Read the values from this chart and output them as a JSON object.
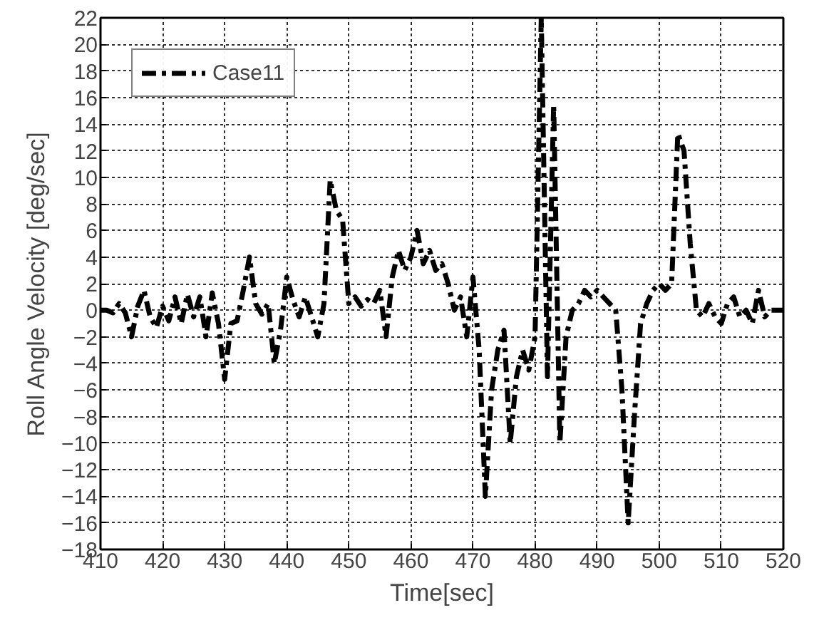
{
  "chart_data": {
    "type": "line",
    "xlabel": "Time[sec]",
    "ylabel": "Roll Angle Velocity [deg/sec]",
    "x": [
      410,
      411,
      412,
      413,
      414,
      415,
      416,
      417,
      418,
      419,
      420,
      421,
      422,
      423,
      424,
      425,
      426,
      427,
      428,
      429,
      430,
      431,
      432,
      433,
      434,
      435,
      436,
      437,
      438,
      439,
      440,
      441,
      442,
      443,
      444,
      445,
      446,
      447,
      448,
      449,
      450,
      451,
      452,
      453,
      454,
      455,
      456,
      457,
      458,
      459,
      460,
      461,
      462,
      463,
      464,
      465,
      466,
      467,
      468,
      469,
      470,
      471,
      472,
      473,
      474,
      475,
      476,
      477,
      478,
      479,
      480,
      481,
      482,
      483,
      484,
      485,
      486,
      487,
      488,
      489,
      490,
      491,
      492,
      493,
      494,
      495,
      496,
      497,
      498,
      499,
      500,
      501,
      502,
      503,
      504,
      505,
      506,
      507,
      508,
      509,
      510,
      511,
      512,
      513,
      514,
      515,
      516,
      517,
      518,
      519,
      520
    ],
    "series": [
      {
        "name": "Case11",
        "color": "#000000",
        "values": [
          0,
          0,
          -0.2,
          0.5,
          -0.2,
          -2,
          0.3,
          1.5,
          -0.5,
          -1.3,
          0.3,
          -0.8,
          1,
          -1,
          1.2,
          -0.5,
          1,
          -2,
          1.3,
          -1,
          -5.2,
          -1,
          -0.8,
          1.5,
          4,
          0.5,
          -0.3,
          0.5,
          -4,
          -1.5,
          2.5,
          0.8,
          -0.5,
          1,
          -0.5,
          -2,
          0.5,
          9.8,
          7.5,
          6.8,
          0.5,
          1,
          0.3,
          0.8,
          0.5,
          1.5,
          -2,
          2.5,
          4.5,
          3,
          4,
          6,
          3.5,
          4.5,
          3,
          3.5,
          2,
          0,
          1,
          -2,
          2.5,
          -3,
          -14,
          -6,
          -3,
          -1.5,
          -10,
          -5,
          -3,
          -4.5,
          -2,
          22,
          -5,
          15.5,
          -10,
          -2,
          0,
          0.5,
          1.5,
          1,
          1.5,
          1,
          0.5,
          0,
          -6,
          -16,
          -8,
          -1,
          0.5,
          1.5,
          2,
          1.5,
          2,
          13.3,
          12,
          5,
          0,
          -0.5,
          0.5,
          -0.5,
          -1,
          0.5,
          1,
          -0.5,
          0,
          -1,
          1.5,
          -0.5,
          0,
          0,
          0
        ]
      }
    ],
    "xlim": [
      410,
      520
    ],
    "xticks": [
      410,
      420,
      430,
      440,
      450,
      460,
      470,
      480,
      490,
      500,
      510,
      520
    ],
    "ylim": [
      -18,
      22
    ],
    "yticks": [
      -18,
      -16,
      -14,
      -12,
      -10,
      -8,
      -6,
      -4,
      -2,
      0,
      2,
      4,
      6,
      8,
      10,
      12,
      14,
      16,
      18,
      20,
      22
    ],
    "grid": true,
    "legend": "top left",
    "line_style": "dashed",
    "marker": "none"
  }
}
